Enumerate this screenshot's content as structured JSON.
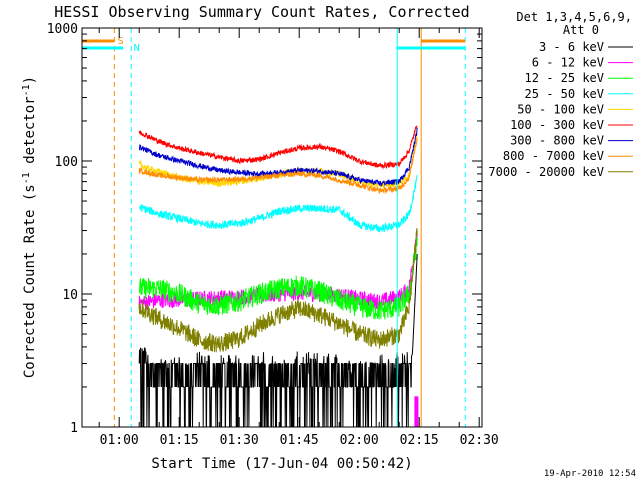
{
  "chart_data": {
    "type": "line",
    "title": "HESSI Observing Summary Count Rates, Corrected",
    "xlabel": "Start Time (17-Jun-04 00:50:42)",
    "ylabel_main": "Corrected Count Rate (s",
    "ylabel_sup1": "-1",
    "ylabel_mid": " detector",
    "ylabel_sup2": "-1",
    "ylabel_end": ")",
    "y_scale": "log",
    "ylim": [
      1,
      1000
    ],
    "xlim_minutes": [
      50.7,
      150.7
    ],
    "x_ticks": [
      {
        "label": "01:00",
        "minute": 60
      },
      {
        "label": "01:15",
        "minute": 75
      },
      {
        "label": "01:30",
        "minute": 90
      },
      {
        "label": "01:45",
        "minute": 105
      },
      {
        "label": "02:00",
        "minute": 120
      },
      {
        "label": "02:15",
        "minute": 135
      },
      {
        "label": "02:30",
        "minute": 150
      }
    ],
    "y_ticks": [
      {
        "label": "1",
        "value": 1
      },
      {
        "label": "10",
        "value": 10
      },
      {
        "label": "100",
        "value": 100
      },
      {
        "label": "1000",
        "value": 1000
      }
    ],
    "legend_header": [
      "Det 1,3,4,5,6,9,",
      "Att 0"
    ],
    "legend_placement": "right",
    "series": [
      {
        "name": "3 - 6 keV",
        "color": "#000000",
        "points": [
          [
            65.0,
            2.8
          ],
          [
            70,
            2.5
          ],
          [
            75,
            2.2
          ],
          [
            80,
            2.0
          ],
          [
            85,
            2.2
          ],
          [
            90,
            2.4
          ],
          [
            95,
            2.6
          ],
          [
            100,
            2.8
          ],
          [
            105,
            3.0
          ],
          [
            110,
            2.8
          ],
          [
            115,
            2.5
          ],
          [
            120,
            2.4
          ],
          [
            125,
            2.4
          ],
          [
            130,
            2.5
          ],
          [
            133.3,
            3.5
          ],
          [
            134.5,
            20
          ]
        ]
      },
      {
        "name": "6 - 12 keV",
        "color": "#ff00ff",
        "points": [
          [
            65.0,
            8.5
          ],
          [
            70,
            9.0
          ],
          [
            75,
            9.0
          ],
          [
            80,
            9.2
          ],
          [
            90,
            9.5
          ],
          [
            100,
            10.0
          ],
          [
            105,
            10.2
          ],
          [
            110,
            10.0
          ],
          [
            115,
            9.8
          ],
          [
            120,
            9.2
          ],
          [
            125,
            8.8
          ],
          [
            130,
            9.5
          ],
          [
            132.5,
            11
          ],
          [
            134.5,
            30
          ]
        ]
      },
      {
        "name": "12 - 25 keV",
        "color": "#00ff00",
        "points": [
          [
            65.0,
            11
          ],
          [
            70,
            11.0
          ],
          [
            75,
            10.0
          ],
          [
            80,
            8.5
          ],
          [
            85,
            8.2
          ],
          [
            90,
            8.8
          ],
          [
            95,
            10.0
          ],
          [
            100,
            11.0
          ],
          [
            105,
            11.5
          ],
          [
            110,
            10.5
          ],
          [
            115,
            9.0
          ],
          [
            120,
            8.0
          ],
          [
            125,
            7.5
          ],
          [
            130,
            8.0
          ],
          [
            132.5,
            10
          ],
          [
            134.5,
            25
          ]
        ]
      },
      {
        "name": "25 - 50 keV",
        "color": "#00ffff",
        "points": [
          [
            65.0,
            45
          ],
          [
            70,
            40
          ],
          [
            75,
            37
          ],
          [
            80,
            34
          ],
          [
            85,
            33
          ],
          [
            90,
            34
          ],
          [
            95,
            37
          ],
          [
            100,
            42
          ],
          [
            105,
            44
          ],
          [
            110,
            44
          ],
          [
            115,
            43
          ],
          [
            120,
            33
          ],
          [
            125,
            31
          ],
          [
            130,
            33
          ],
          [
            132.5,
            40
          ],
          [
            134.5,
            75
          ]
        ]
      },
      {
        "name": "50 - 100 keV",
        "color": "#ffd700",
        "points": [
          [
            65.0,
            95
          ],
          [
            67,
            88
          ],
          [
            70,
            83
          ],
          [
            75,
            75
          ],
          [
            80,
            70
          ],
          [
            85,
            68
          ],
          [
            90,
            70
          ],
          [
            95,
            74
          ],
          [
            100,
            80
          ],
          [
            105,
            84
          ],
          [
            110,
            84
          ],
          [
            115,
            80
          ],
          [
            120,
            70
          ],
          [
            125,
            66
          ],
          [
            130,
            68
          ],
          [
            132.5,
            78
          ],
          [
            134.5,
            160
          ]
        ]
      },
      {
        "name": "100 - 300 keV",
        "color": "#ff0000",
        "points": [
          [
            65.0,
            165
          ],
          [
            67,
            155
          ],
          [
            70,
            140
          ],
          [
            75,
            125
          ],
          [
            80,
            115
          ],
          [
            85,
            107
          ],
          [
            90,
            100
          ],
          [
            95,
            103
          ],
          [
            100,
            115
          ],
          [
            105,
            125
          ],
          [
            110,
            128
          ],
          [
            115,
            118
          ],
          [
            120,
            100
          ],
          [
            125,
            92
          ],
          [
            130,
            95
          ],
          [
            132.5,
            120
          ],
          [
            134.5,
            190
          ]
        ]
      },
      {
        "name": "300 - 800 keV",
        "color": "#0000cc",
        "points": [
          [
            65.0,
            128
          ],
          [
            67,
            120
          ],
          [
            70,
            110
          ],
          [
            75,
            100
          ],
          [
            80,
            92
          ],
          [
            85,
            85
          ],
          [
            90,
            82
          ],
          [
            95,
            80
          ],
          [
            100,
            82
          ],
          [
            105,
            85
          ],
          [
            110,
            84
          ],
          [
            115,
            80
          ],
          [
            120,
            72
          ],
          [
            125,
            68
          ],
          [
            130,
            70
          ],
          [
            132.5,
            90
          ],
          [
            134.5,
            170
          ]
        ]
      },
      {
        "name": "800 - 7000 keV",
        "color": "#ff8c00",
        "points": [
          [
            65.0,
            85
          ],
          [
            67,
            82
          ],
          [
            70,
            78
          ],
          [
            75,
            75
          ],
          [
            80,
            72
          ],
          [
            85,
            72
          ],
          [
            90,
            73
          ],
          [
            95,
            75
          ],
          [
            100,
            78
          ],
          [
            105,
            80
          ],
          [
            110,
            78
          ],
          [
            115,
            72
          ],
          [
            120,
            66
          ],
          [
            125,
            60
          ],
          [
            130,
            62
          ],
          [
            132.5,
            75
          ],
          [
            134.5,
            150
          ]
        ]
      },
      {
        "name": "7000 - 20000 keV",
        "color": "#808000",
        "points": [
          [
            65.0,
            8.0
          ],
          [
            70,
            6.5
          ],
          [
            75,
            5.5
          ],
          [
            80,
            4.5
          ],
          [
            85,
            4.2
          ],
          [
            90,
            4.6
          ],
          [
            95,
            5.8
          ],
          [
            100,
            7.0
          ],
          [
            105,
            7.8
          ],
          [
            110,
            7.0
          ],
          [
            115,
            6.0
          ],
          [
            120,
            5.0
          ],
          [
            125,
            4.5
          ],
          [
            130,
            5.0
          ],
          [
            132.5,
            8
          ],
          [
            134.5,
            30
          ]
        ]
      }
    ],
    "annotations": [
      {
        "label": "S",
        "color": "#ff8c00"
      },
      {
        "label": "N",
        "color": "#00ffff"
      }
    ]
  },
  "timestamp": "19-Apr-2010 12:54"
}
